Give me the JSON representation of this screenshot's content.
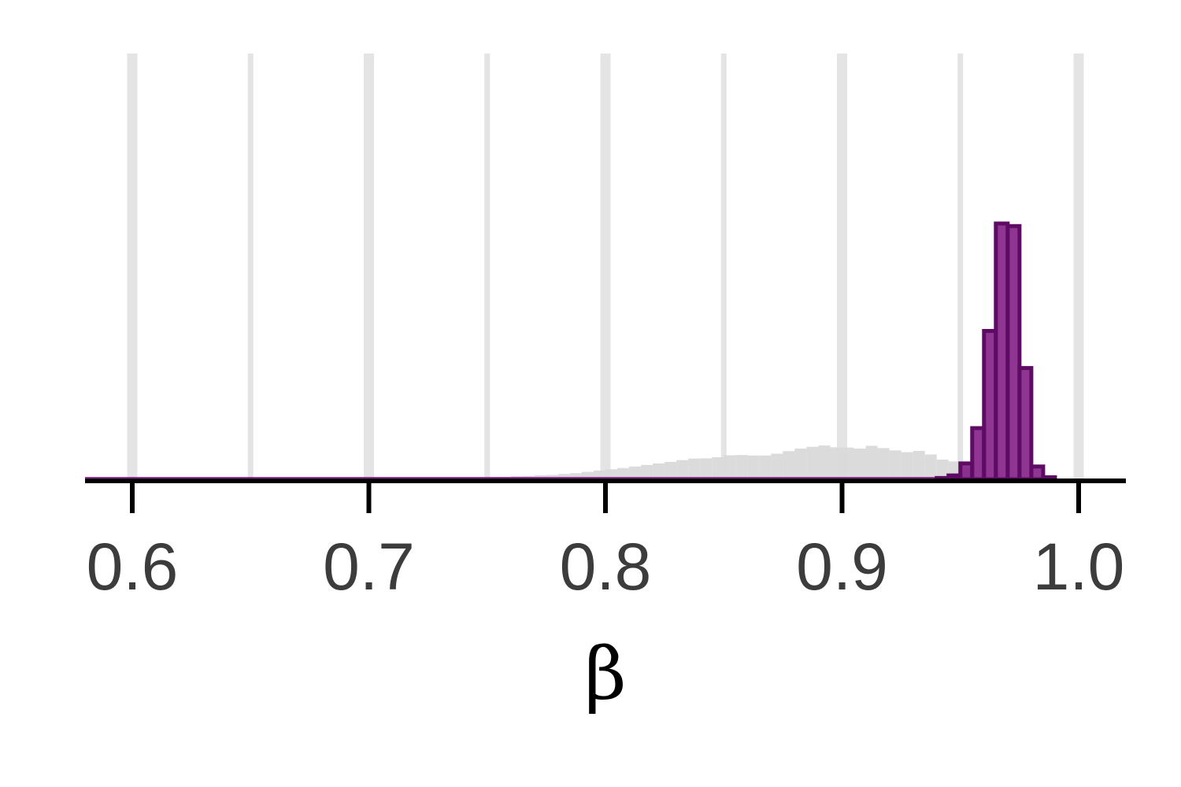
{
  "chart_data": {
    "type": "bar",
    "xlabel": "β",
    "ylabel": "",
    "xlim": [
      0.58,
      1.02
    ],
    "ylim": [
      0,
      1.0
    ],
    "xticks": [
      {
        "value": 0.6,
        "label": "0.6"
      },
      {
        "value": 0.7,
        "label": "0.7"
      },
      {
        "value": 0.8,
        "label": "0.8"
      },
      {
        "value": 0.9,
        "label": "0.9"
      },
      {
        "value": 1.0,
        "label": "1.0"
      }
    ],
    "grid": {
      "vertical": [
        0.6,
        0.65,
        0.7,
        0.75,
        0.8,
        0.85,
        0.9,
        0.95,
        1.0
      ],
      "horizontal": false
    },
    "y_axis_shown": false,
    "bin_width": 0.005,
    "series": [
      {
        "style": "filled-light",
        "color": "#d9d9d9",
        "bins_start": [
          0.75,
          0.755,
          0.76,
          0.765,
          0.77,
          0.775,
          0.78,
          0.785,
          0.79,
          0.795,
          0.8,
          0.805,
          0.81,
          0.815,
          0.82,
          0.825,
          0.83,
          0.835,
          0.84,
          0.845,
          0.85,
          0.855,
          0.86,
          0.865,
          0.87,
          0.875,
          0.88,
          0.885,
          0.89,
          0.895,
          0.9,
          0.905,
          0.91,
          0.915,
          0.92,
          0.925,
          0.93,
          0.935,
          0.94,
          0.945,
          0.95
        ],
        "values": [
          0.005,
          0.008,
          0.012,
          0.013,
          0.016,
          0.017,
          0.021,
          0.024,
          0.029,
          0.034,
          0.039,
          0.044,
          0.05,
          0.056,
          0.062,
          0.068,
          0.075,
          0.081,
          0.082,
          0.086,
          0.094,
          0.095,
          0.093,
          0.093,
          0.1,
          0.11,
          0.12,
          0.127,
          0.132,
          0.125,
          0.124,
          0.12,
          0.131,
          0.122,
          0.113,
          0.106,
          0.111,
          0.097,
          0.077,
          0.07,
          0.045
        ]
      },
      {
        "style": "outlined-dark",
        "color": "#7b1380",
        "edge_color": "#5e0c63",
        "bins_start": [
          0.94,
          0.945,
          0.95,
          0.955,
          0.96,
          0.965,
          0.97,
          0.975,
          0.98,
          0.985
        ],
        "values": [
          0.005,
          0.015,
          0.062,
          0.2,
          0.58,
          1.0,
          0.99,
          0.435,
          0.05,
          0.008
        ]
      }
    ]
  }
}
